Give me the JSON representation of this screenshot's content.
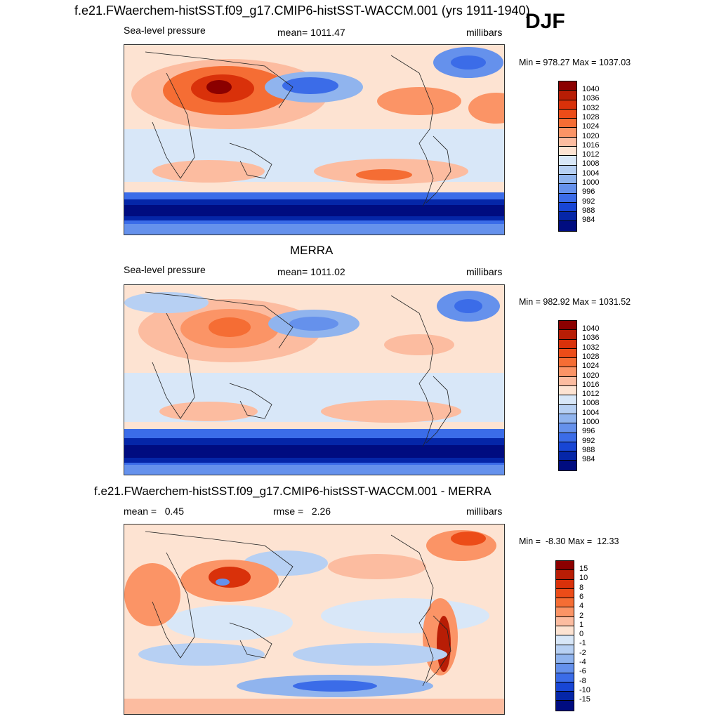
{
  "header": {
    "title": "f.e21.FWaerchem-histSST.f09_g17.CMIP6-histSST-WACCM.001 (yrs 1911-1940)",
    "season": "DJF"
  },
  "panels": [
    {
      "id": "model",
      "left_label": "Sea-level pressure",
      "center_label": "mean= 1011.47",
      "right_label": "millibars",
      "minmax": "Min = 978.27 Max = 1037.03"
    },
    {
      "id": "obs",
      "title": "MERRA",
      "left_label": "Sea-level pressure",
      "center_label": "mean= 1011.02",
      "right_label": "millibars",
      "minmax": "Min = 982.92 Max = 1031.52"
    },
    {
      "id": "diff",
      "title": "f.e21.FWaerchem-histSST.f09_g17.CMIP6-histSST-WACCM.001 - MERRA",
      "left_label": "mean =   0.45",
      "center_label": "rmse =   2.26",
      "right_label": "millibars",
      "minmax": "Min =  -8.30 Max =  12.33"
    }
  ],
  "colorbars": {
    "slp": {
      "labels": [
        "1040",
        "1036",
        "1032",
        "1028",
        "1024",
        "1020",
        "1016",
        "1012",
        "1008",
        "1004",
        "1000",
        "996",
        "992",
        "988",
        "984"
      ],
      "colors": [
        "#8b0000",
        "#b81d05",
        "#d9310a",
        "#ec4c18",
        "#f56d34",
        "#fb9466",
        "#fcbca0",
        "#fde3d2",
        "#d8e7f8",
        "#b7d0f3",
        "#90b4ee",
        "#6591ec",
        "#3b6ce8",
        "#1846d5",
        "#0526a8",
        "#000c80"
      ]
    },
    "diff": {
      "labels": [
        "15",
        "10",
        "8",
        "6",
        "4",
        "2",
        "1",
        "0",
        "-1",
        "-2",
        "-4",
        "-6",
        "-8",
        "-10",
        "-15"
      ],
      "colors": [
        "#8b0000",
        "#b81d05",
        "#d9310a",
        "#ec4c18",
        "#f56d34",
        "#fb9466",
        "#fcbca0",
        "#fde3d2",
        "#d8e7f8",
        "#b7d0f3",
        "#90b4ee",
        "#6591ec",
        "#3b6ce8",
        "#1846d5",
        "#0526a8",
        "#000c80"
      ]
    }
  }
}
